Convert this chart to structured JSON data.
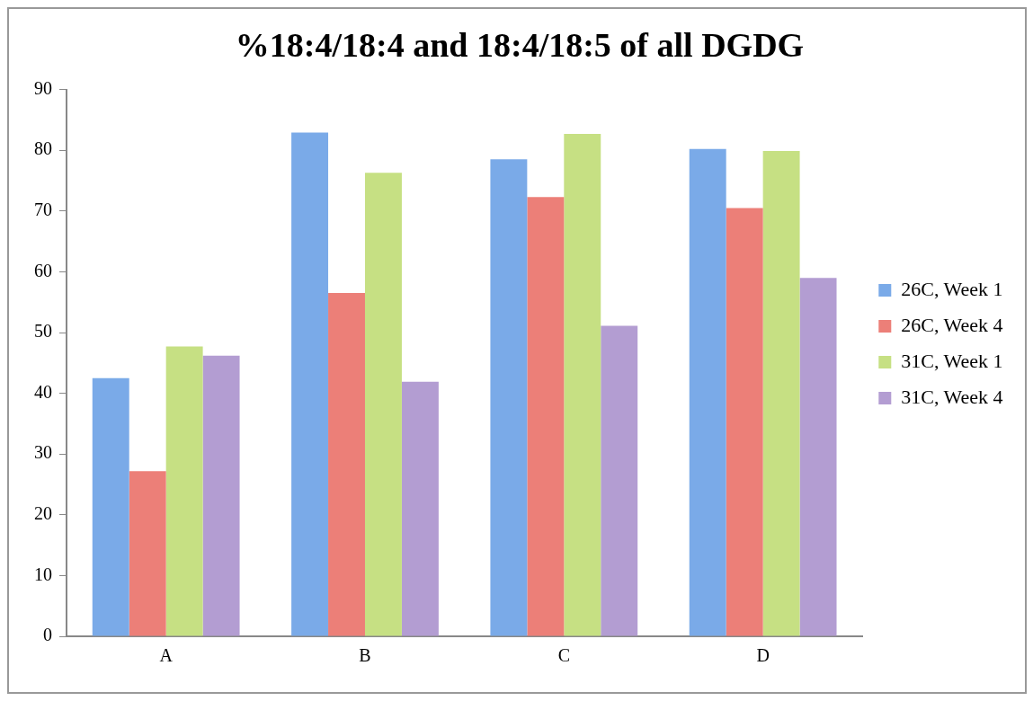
{
  "chart_data": {
    "type": "bar",
    "title": "%18:4/18:4 and 18:4/18:5 of all DGDG",
    "categories": [
      "A",
      "B",
      "C",
      "D"
    ],
    "series": [
      {
        "name": "26C, Week 1",
        "color": "#7aaae8",
        "values": [
          42.5,
          82.9,
          78.5,
          80.2
        ]
      },
      {
        "name": "26C, Week 4",
        "color": "#ec7f78",
        "values": [
          27.2,
          56.5,
          72.3,
          70.5
        ]
      },
      {
        "name": "31C, Week 1",
        "color": "#c6e083",
        "values": [
          47.7,
          76.3,
          82.7,
          79.9
        ]
      },
      {
        "name": "31C, Week 4",
        "color": "#b39dd2",
        "values": [
          46.2,
          41.9,
          51.1,
          59.0
        ]
      }
    ],
    "ylim": [
      0,
      90
    ],
    "yticks": [
      0,
      10,
      20,
      30,
      40,
      50,
      60,
      70,
      80,
      90
    ],
    "grid": false,
    "legend": "right"
  }
}
